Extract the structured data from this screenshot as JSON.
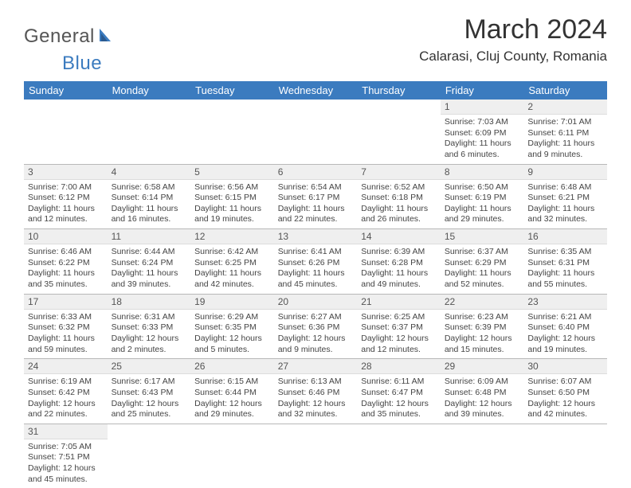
{
  "logo": {
    "part1": "General",
    "part2": "Blue"
  },
  "title": "March 2024",
  "location": "Calarasi, Cluj County, Romania",
  "colors": {
    "header_bg": "#3b7bbf",
    "header_text": "#ffffff",
    "daynum_bg": "#efefef",
    "border": "#b8b8b8",
    "logo_gray": "#555555",
    "logo_blue": "#3b7bbf"
  },
  "weekdays": [
    "Sunday",
    "Monday",
    "Tuesday",
    "Wednesday",
    "Thursday",
    "Friday",
    "Saturday"
  ],
  "weeks": [
    [
      null,
      null,
      null,
      null,
      null,
      {
        "num": "1",
        "sunrise": "Sunrise: 7:03 AM",
        "sunset": "Sunset: 6:09 PM",
        "daylight": "Daylight: 11 hours and 6 minutes."
      },
      {
        "num": "2",
        "sunrise": "Sunrise: 7:01 AM",
        "sunset": "Sunset: 6:11 PM",
        "daylight": "Daylight: 11 hours and 9 minutes."
      }
    ],
    [
      {
        "num": "3",
        "sunrise": "Sunrise: 7:00 AM",
        "sunset": "Sunset: 6:12 PM",
        "daylight": "Daylight: 11 hours and 12 minutes."
      },
      {
        "num": "4",
        "sunrise": "Sunrise: 6:58 AM",
        "sunset": "Sunset: 6:14 PM",
        "daylight": "Daylight: 11 hours and 16 minutes."
      },
      {
        "num": "5",
        "sunrise": "Sunrise: 6:56 AM",
        "sunset": "Sunset: 6:15 PM",
        "daylight": "Daylight: 11 hours and 19 minutes."
      },
      {
        "num": "6",
        "sunrise": "Sunrise: 6:54 AM",
        "sunset": "Sunset: 6:17 PM",
        "daylight": "Daylight: 11 hours and 22 minutes."
      },
      {
        "num": "7",
        "sunrise": "Sunrise: 6:52 AM",
        "sunset": "Sunset: 6:18 PM",
        "daylight": "Daylight: 11 hours and 26 minutes."
      },
      {
        "num": "8",
        "sunrise": "Sunrise: 6:50 AM",
        "sunset": "Sunset: 6:19 PM",
        "daylight": "Daylight: 11 hours and 29 minutes."
      },
      {
        "num": "9",
        "sunrise": "Sunrise: 6:48 AM",
        "sunset": "Sunset: 6:21 PM",
        "daylight": "Daylight: 11 hours and 32 minutes."
      }
    ],
    [
      {
        "num": "10",
        "sunrise": "Sunrise: 6:46 AM",
        "sunset": "Sunset: 6:22 PM",
        "daylight": "Daylight: 11 hours and 35 minutes."
      },
      {
        "num": "11",
        "sunrise": "Sunrise: 6:44 AM",
        "sunset": "Sunset: 6:24 PM",
        "daylight": "Daylight: 11 hours and 39 minutes."
      },
      {
        "num": "12",
        "sunrise": "Sunrise: 6:42 AM",
        "sunset": "Sunset: 6:25 PM",
        "daylight": "Daylight: 11 hours and 42 minutes."
      },
      {
        "num": "13",
        "sunrise": "Sunrise: 6:41 AM",
        "sunset": "Sunset: 6:26 PM",
        "daylight": "Daylight: 11 hours and 45 minutes."
      },
      {
        "num": "14",
        "sunrise": "Sunrise: 6:39 AM",
        "sunset": "Sunset: 6:28 PM",
        "daylight": "Daylight: 11 hours and 49 minutes."
      },
      {
        "num": "15",
        "sunrise": "Sunrise: 6:37 AM",
        "sunset": "Sunset: 6:29 PM",
        "daylight": "Daylight: 11 hours and 52 minutes."
      },
      {
        "num": "16",
        "sunrise": "Sunrise: 6:35 AM",
        "sunset": "Sunset: 6:31 PM",
        "daylight": "Daylight: 11 hours and 55 minutes."
      }
    ],
    [
      {
        "num": "17",
        "sunrise": "Sunrise: 6:33 AM",
        "sunset": "Sunset: 6:32 PM",
        "daylight": "Daylight: 11 hours and 59 minutes."
      },
      {
        "num": "18",
        "sunrise": "Sunrise: 6:31 AM",
        "sunset": "Sunset: 6:33 PM",
        "daylight": "Daylight: 12 hours and 2 minutes."
      },
      {
        "num": "19",
        "sunrise": "Sunrise: 6:29 AM",
        "sunset": "Sunset: 6:35 PM",
        "daylight": "Daylight: 12 hours and 5 minutes."
      },
      {
        "num": "20",
        "sunrise": "Sunrise: 6:27 AM",
        "sunset": "Sunset: 6:36 PM",
        "daylight": "Daylight: 12 hours and 9 minutes."
      },
      {
        "num": "21",
        "sunrise": "Sunrise: 6:25 AM",
        "sunset": "Sunset: 6:37 PM",
        "daylight": "Daylight: 12 hours and 12 minutes."
      },
      {
        "num": "22",
        "sunrise": "Sunrise: 6:23 AM",
        "sunset": "Sunset: 6:39 PM",
        "daylight": "Daylight: 12 hours and 15 minutes."
      },
      {
        "num": "23",
        "sunrise": "Sunrise: 6:21 AM",
        "sunset": "Sunset: 6:40 PM",
        "daylight": "Daylight: 12 hours and 19 minutes."
      }
    ],
    [
      {
        "num": "24",
        "sunrise": "Sunrise: 6:19 AM",
        "sunset": "Sunset: 6:42 PM",
        "daylight": "Daylight: 12 hours and 22 minutes."
      },
      {
        "num": "25",
        "sunrise": "Sunrise: 6:17 AM",
        "sunset": "Sunset: 6:43 PM",
        "daylight": "Daylight: 12 hours and 25 minutes."
      },
      {
        "num": "26",
        "sunrise": "Sunrise: 6:15 AM",
        "sunset": "Sunset: 6:44 PM",
        "daylight": "Daylight: 12 hours and 29 minutes."
      },
      {
        "num": "27",
        "sunrise": "Sunrise: 6:13 AM",
        "sunset": "Sunset: 6:46 PM",
        "daylight": "Daylight: 12 hours and 32 minutes."
      },
      {
        "num": "28",
        "sunrise": "Sunrise: 6:11 AM",
        "sunset": "Sunset: 6:47 PM",
        "daylight": "Daylight: 12 hours and 35 minutes."
      },
      {
        "num": "29",
        "sunrise": "Sunrise: 6:09 AM",
        "sunset": "Sunset: 6:48 PM",
        "daylight": "Daylight: 12 hours and 39 minutes."
      },
      {
        "num": "30",
        "sunrise": "Sunrise: 6:07 AM",
        "sunset": "Sunset: 6:50 PM",
        "daylight": "Daylight: 12 hours and 42 minutes."
      }
    ],
    [
      {
        "num": "31",
        "sunrise": "Sunrise: 7:05 AM",
        "sunset": "Sunset: 7:51 PM",
        "daylight": "Daylight: 12 hours and 45 minutes."
      },
      null,
      null,
      null,
      null,
      null,
      null
    ]
  ]
}
